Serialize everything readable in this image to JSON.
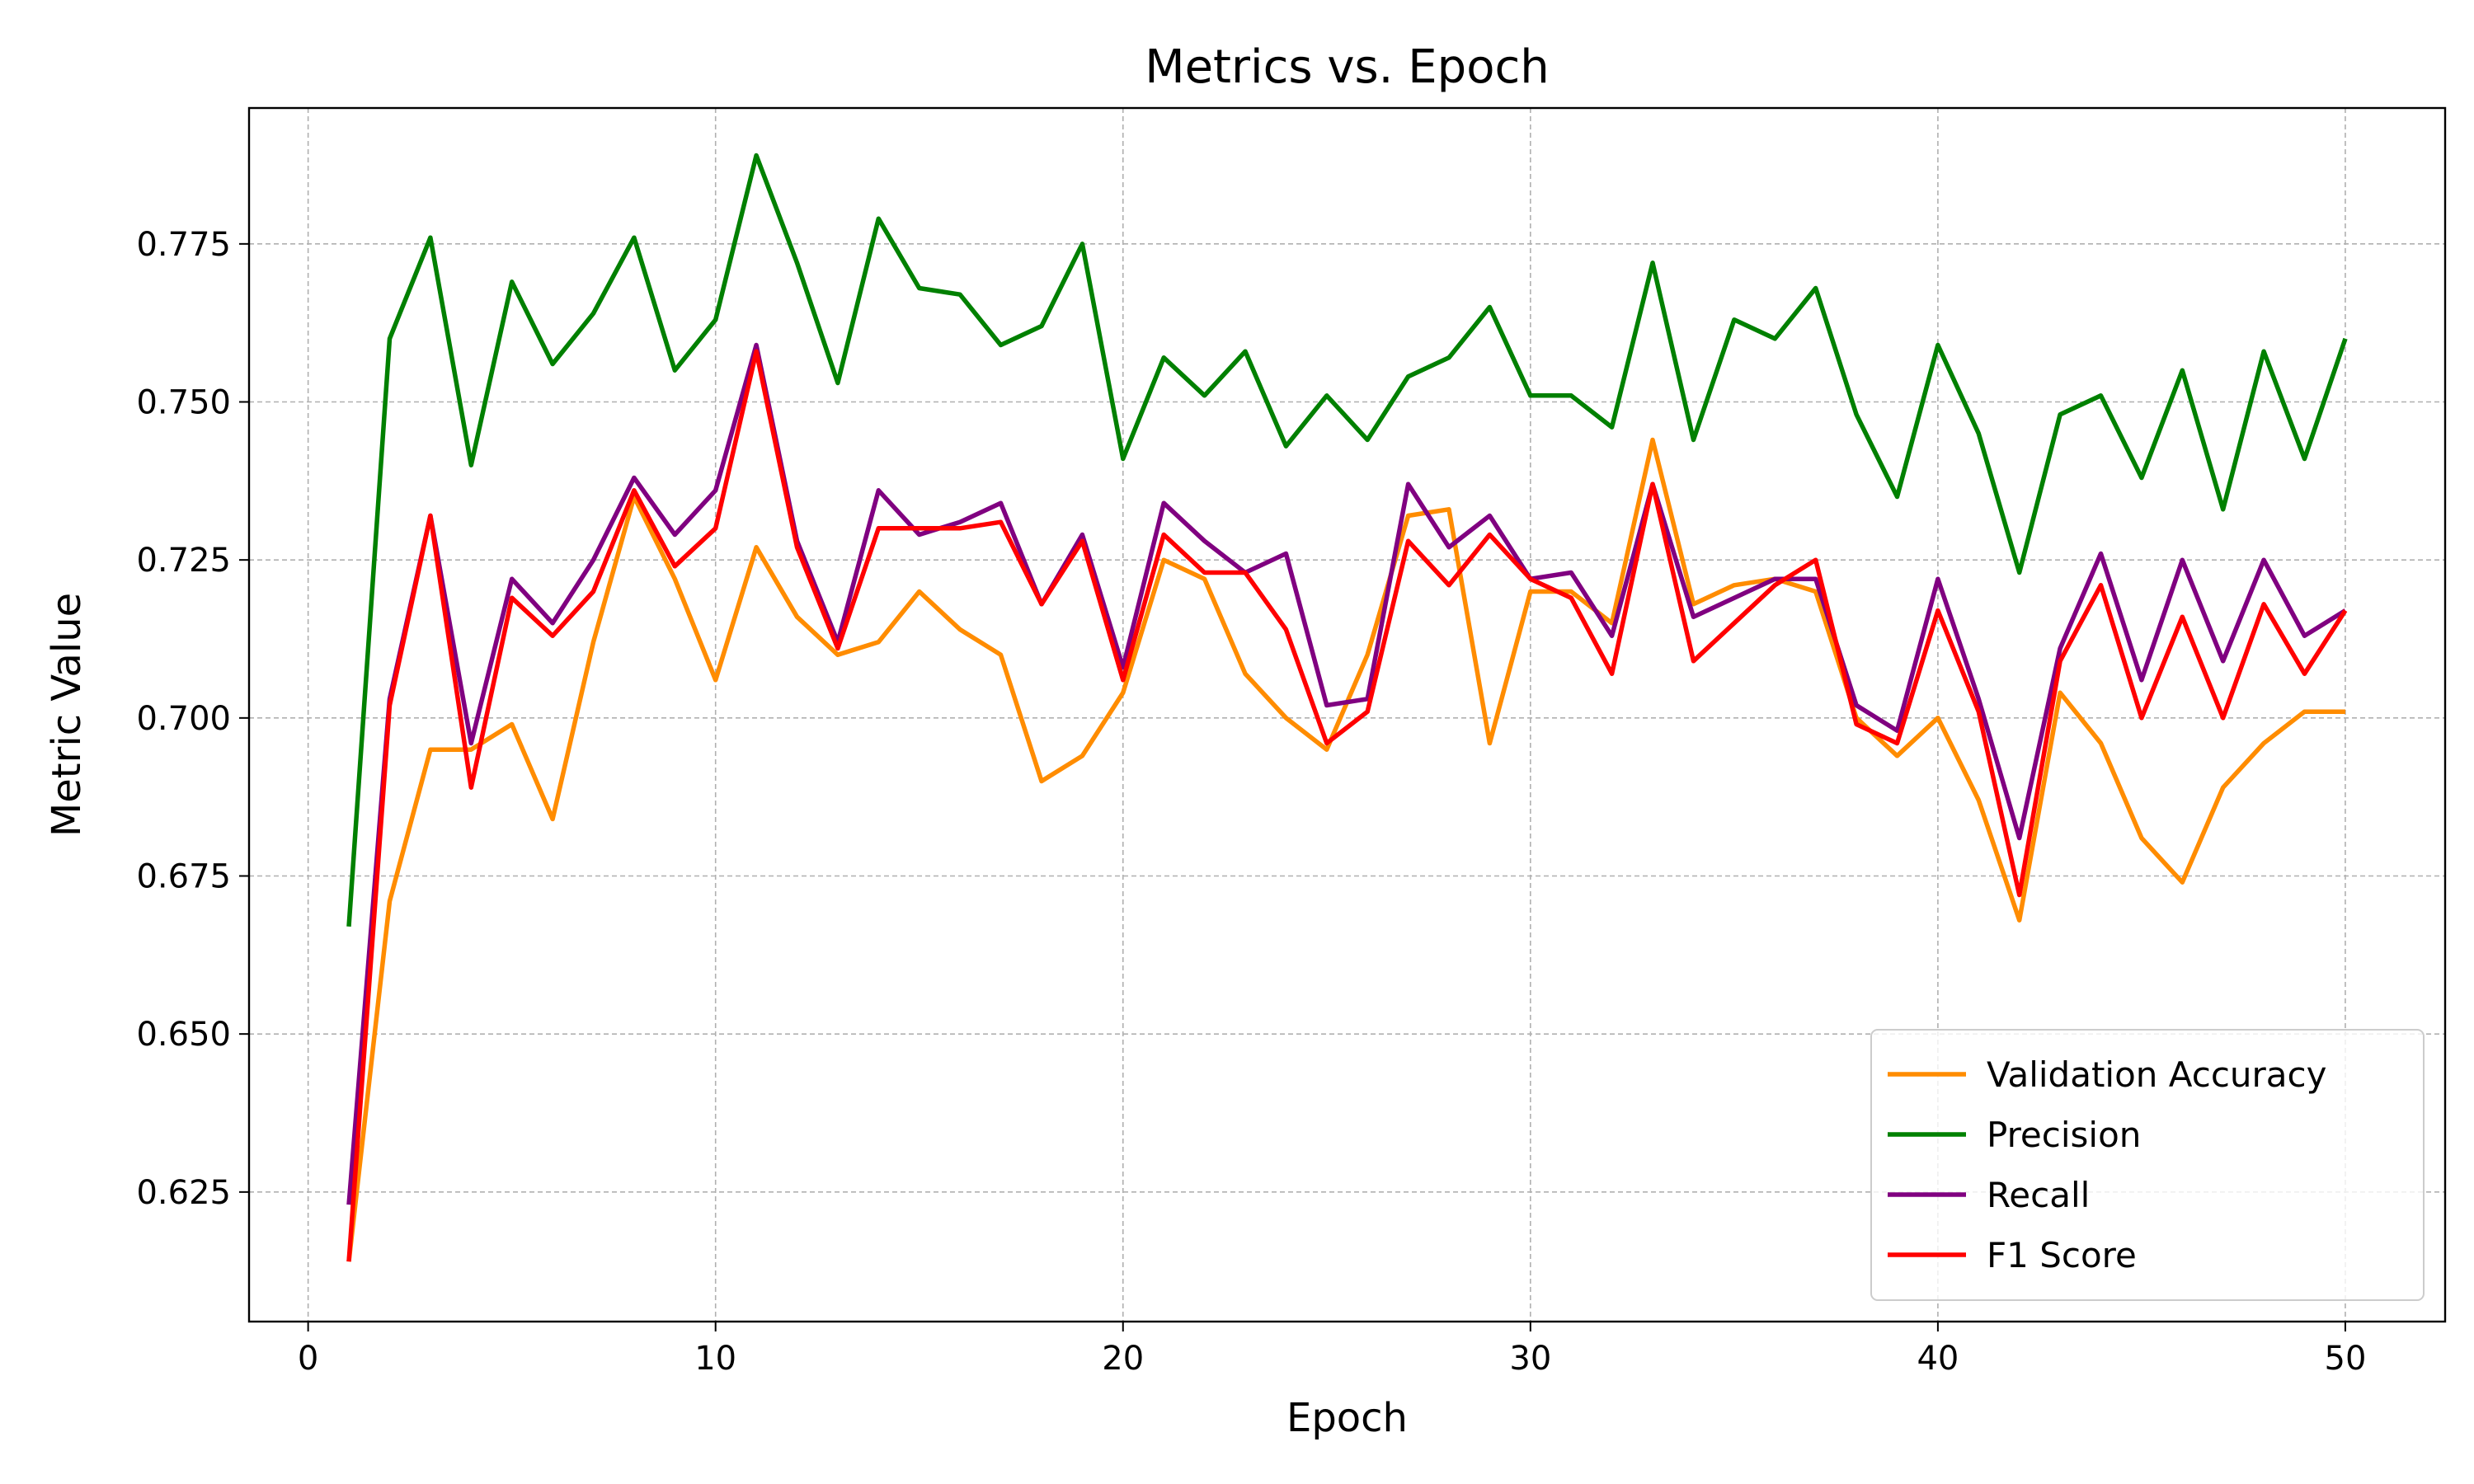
{
  "chart_data": {
    "type": "line",
    "title": "Metrics vs. Epoch",
    "xlabel": "Epoch",
    "ylabel": "Metric Value",
    "xlim": [
      -1.45,
      52.45
    ],
    "ylim": [
      0.6045,
      0.7965
    ],
    "x_ticks": [
      0,
      10,
      20,
      30,
      40,
      50
    ],
    "y_ticks": [
      0.625,
      0.65,
      0.675,
      0.7,
      0.725,
      0.75,
      0.775
    ],
    "x_tick_labels": [
      "0",
      "10",
      "20",
      "30",
      "40",
      "50"
    ],
    "y_tick_labels": [
      "0.625",
      "0.650",
      "0.675",
      "0.700",
      "0.725",
      "0.750",
      "0.775"
    ],
    "grid": true,
    "legend_position": "lower-right",
    "x": [
      1,
      2,
      3,
      4,
      5,
      6,
      7,
      8,
      9,
      10,
      11,
      12,
      13,
      14,
      15,
      16,
      17,
      18,
      19,
      20,
      21,
      22,
      23,
      24,
      25,
      26,
      27,
      28,
      29,
      30,
      31,
      32,
      33,
      34,
      35,
      36,
      37,
      38,
      39,
      40,
      41,
      42,
      43,
      44,
      45,
      46,
      47,
      48,
      49,
      50
    ],
    "series": [
      {
        "name": "Validation Accuracy",
        "color": "#ff8c00",
        "values": [
          0.614,
          0.671,
          0.695,
          0.695,
          0.699,
          0.684,
          0.712,
          0.735,
          0.722,
          0.706,
          0.727,
          0.716,
          0.71,
          0.712,
          0.72,
          0.714,
          0.71,
          0.69,
          0.694,
          0.704,
          0.725,
          0.722,
          0.707,
          0.7,
          0.695,
          0.71,
          0.732,
          0.733,
          0.696,
          0.72,
          0.72,
          0.715,
          0.744,
          0.718,
          0.721,
          0.722,
          0.72,
          0.7,
          0.694,
          0.7,
          0.687,
          0.668,
          0.704,
          0.696,
          0.681,
          0.674,
          0.689,
          0.696,
          0.701,
          0.701
        ]
      },
      {
        "name": "Precision",
        "color": "#008000",
        "values": [
          0.667,
          0.76,
          0.776,
          0.74,
          0.769,
          0.756,
          0.764,
          0.776,
          0.755,
          0.763,
          0.789,
          0.772,
          0.753,
          0.779,
          0.768,
          0.767,
          0.759,
          0.762,
          0.775,
          0.741,
          0.757,
          0.751,
          0.758,
          0.743,
          0.751,
          0.744,
          0.754,
          0.757,
          0.765,
          0.751,
          0.751,
          0.746,
          0.772,
          0.744,
          0.763,
          0.76,
          0.768,
          0.748,
          0.735,
          0.759,
          0.745,
          0.723,
          0.748,
          0.751,
          0.738,
          0.755,
          0.733,
          0.758,
          0.741,
          0.76
        ]
      },
      {
        "name": "Recall",
        "color": "#800080",
        "values": [
          0.623,
          0.703,
          0.732,
          0.696,
          0.722,
          0.715,
          0.725,
          0.738,
          0.729,
          0.736,
          0.759,
          0.728,
          0.712,
          0.736,
          0.729,
          0.731,
          0.734,
          0.718,
          0.729,
          0.708,
          0.734,
          0.728,
          0.723,
          0.726,
          0.702,
          0.703,
          0.737,
          0.727,
          0.732,
          0.722,
          0.723,
          0.713,
          0.737,
          0.716,
          0.719,
          0.722,
          0.722,
          0.702,
          0.698,
          0.722,
          0.703,
          0.681,
          0.711,
          0.726,
          0.706,
          0.725,
          0.709,
          0.725,
          0.713,
          0.717
        ]
      },
      {
        "name": "F1 Score",
        "color": "#ff0000",
        "values": [
          0.614,
          0.702,
          0.732,
          0.689,
          0.719,
          0.713,
          0.72,
          0.736,
          0.724,
          0.73,
          0.758,
          0.727,
          0.711,
          0.73,
          0.73,
          0.73,
          0.731,
          0.718,
          0.728,
          0.706,
          0.729,
          0.723,
          0.723,
          0.714,
          0.696,
          0.701,
          0.728,
          0.721,
          0.729,
          0.722,
          0.719,
          0.707,
          0.737,
          0.709,
          0.715,
          0.721,
          0.725,
          0.699,
          0.696,
          0.717,
          0.701,
          0.672,
          0.709,
          0.721,
          0.7,
          0.716,
          0.7,
          0.718,
          0.707,
          0.717
        ]
      }
    ]
  }
}
